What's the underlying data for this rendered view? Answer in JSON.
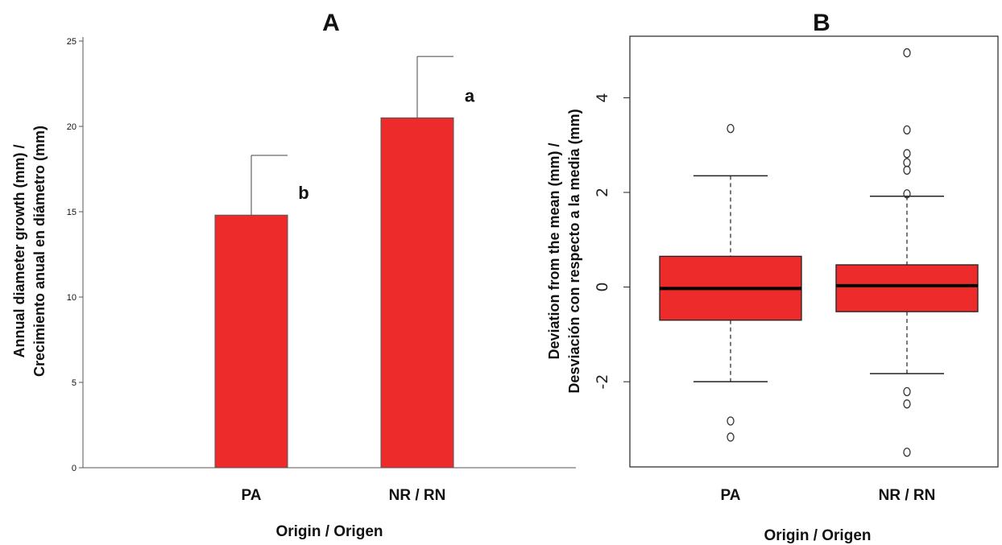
{
  "chart_data": [
    {
      "type": "bar",
      "panel": "A",
      "title": "A",
      "categories": [
        "PA",
        "NR / RN"
      ],
      "values": [
        14.8,
        20.5
      ],
      "error_upper": [
        18.3,
        24.1
      ],
      "significance_labels": [
        "b",
        "a"
      ],
      "xlabel": "Origin / Origen",
      "ylabel_line1": "Annual diameter growth (mm) /",
      "ylabel_line2": "Crecimiento anual en diámetro (mm)",
      "ylim": [
        0,
        25
      ],
      "yticks": [
        0,
        5,
        10,
        15,
        20,
        25
      ],
      "ytick_labels": [
        "0",
        "5",
        "10",
        "15",
        "20",
        "25"
      ],
      "color": "#ee2b2b"
    },
    {
      "type": "boxplot",
      "panel": "B",
      "title": "B",
      "categories": [
        "PA",
        "NR / RN"
      ],
      "boxes": [
        {
          "whisker_low": -2.0,
          "q1": -0.7,
          "median": -0.03,
          "q3": 0.65,
          "whisker_high": 2.35,
          "outliers": [
            3.35,
            -2.83,
            -3.17
          ]
        },
        {
          "whisker_low": -1.83,
          "q1": -0.52,
          "median": 0.03,
          "q3": 0.47,
          "whisker_high": 1.92,
          "outliers": [
            4.95,
            3.32,
            2.82,
            2.63,
            2.47,
            1.97,
            -2.21,
            -2.47,
            -3.49
          ]
        }
      ],
      "xlabel": "Origin / Origen",
      "ylabel_line1": "Deviation from the mean (mm) /",
      "ylabel_line2": "Desviación con respecto a la media (mm)",
      "ylim": [
        -3.8,
        5.3
      ],
      "yticks": [
        -2,
        0,
        2,
        4
      ],
      "ytick_labels": [
        "-2",
        "0",
        "2",
        "4"
      ],
      "color": "#ee2b2b"
    }
  ]
}
